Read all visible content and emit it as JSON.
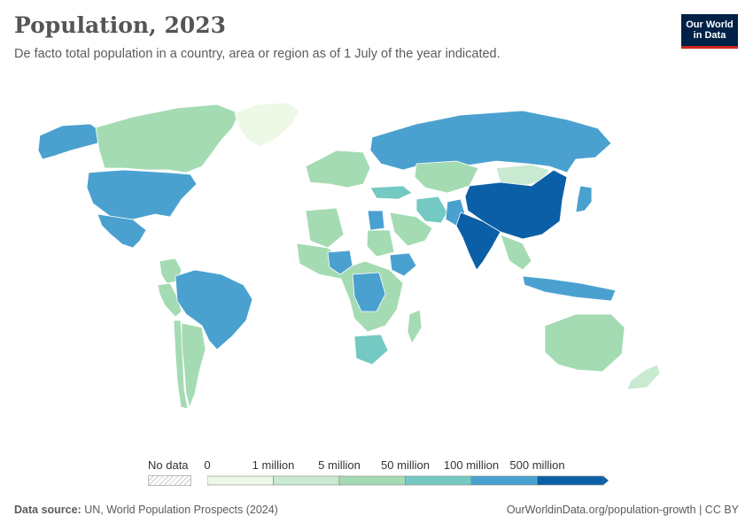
{
  "header": {
    "title": "Population, 2023",
    "subtitle": "De facto total population in a country, area or region as of 1 July of the year indicated."
  },
  "logo": {
    "line1": "Our World",
    "line2": "in Data"
  },
  "legend": {
    "no_data_label": "No data",
    "thresholds": [
      "0",
      "1 million",
      "5 million",
      "50 million",
      "100 million",
      "500 million"
    ],
    "colors": [
      "#eef8e6",
      "#c7ead0",
      "#a4dbb3",
      "#74c9c2",
      "#4aa1d0",
      "#0a5fa6"
    ]
  },
  "footer": {
    "source_label": "Data source:",
    "source_text": "UN, World Population Prospects (2024)",
    "url": "OurWorldinData.org/population-growth | CC BY"
  },
  "map_regions": [
    {
      "name": "Canada",
      "bin": 3
    },
    {
      "name": "Alaska (United States)",
      "bin": 5
    },
    {
      "name": "United States",
      "bin": 5
    },
    {
      "name": "Greenland",
      "bin": 1
    },
    {
      "name": "Mexico",
      "bin": 5
    },
    {
      "name": "Brazil",
      "bin": 5
    },
    {
      "name": "Colombia",
      "bin": 3
    },
    {
      "name": "Peru",
      "bin": 3
    },
    {
      "name": "Argentina",
      "bin": 3
    },
    {
      "name": "Chile",
      "bin": 3
    },
    {
      "name": "Russia",
      "bin": 5
    },
    {
      "name": "China",
      "bin": 6
    },
    {
      "name": "India",
      "bin": 6
    },
    {
      "name": "Kazakhstan",
      "bin": 3
    },
    {
      "name": "Mongolia",
      "bin": 2
    },
    {
      "name": "Japan",
      "bin": 5
    },
    {
      "name": "Indonesia",
      "bin": 5
    },
    {
      "name": "Pakistan",
      "bin": 5
    },
    {
      "name": "Iran",
      "bin": 4
    },
    {
      "name": "Turkey",
      "bin": 4
    },
    {
      "name": "Saudi Arabia",
      "bin": 3
    },
    {
      "name": "Egypt",
      "bin": 5
    },
    {
      "name": "Nigeria",
      "bin": 5
    },
    {
      "name": "Ethiopia",
      "bin": 5
    },
    {
      "name": "DR Congo",
      "bin": 5
    },
    {
      "name": "South Africa",
      "bin": 4
    },
    {
      "name": "Sudan",
      "bin": 3
    },
    {
      "name": "Algeria",
      "bin": 3
    },
    {
      "name": "Australia",
      "bin": 3
    },
    {
      "name": "New Zealand",
      "bin": 2
    },
    {
      "name": "Madagascar",
      "bin": 3
    }
  ]
}
